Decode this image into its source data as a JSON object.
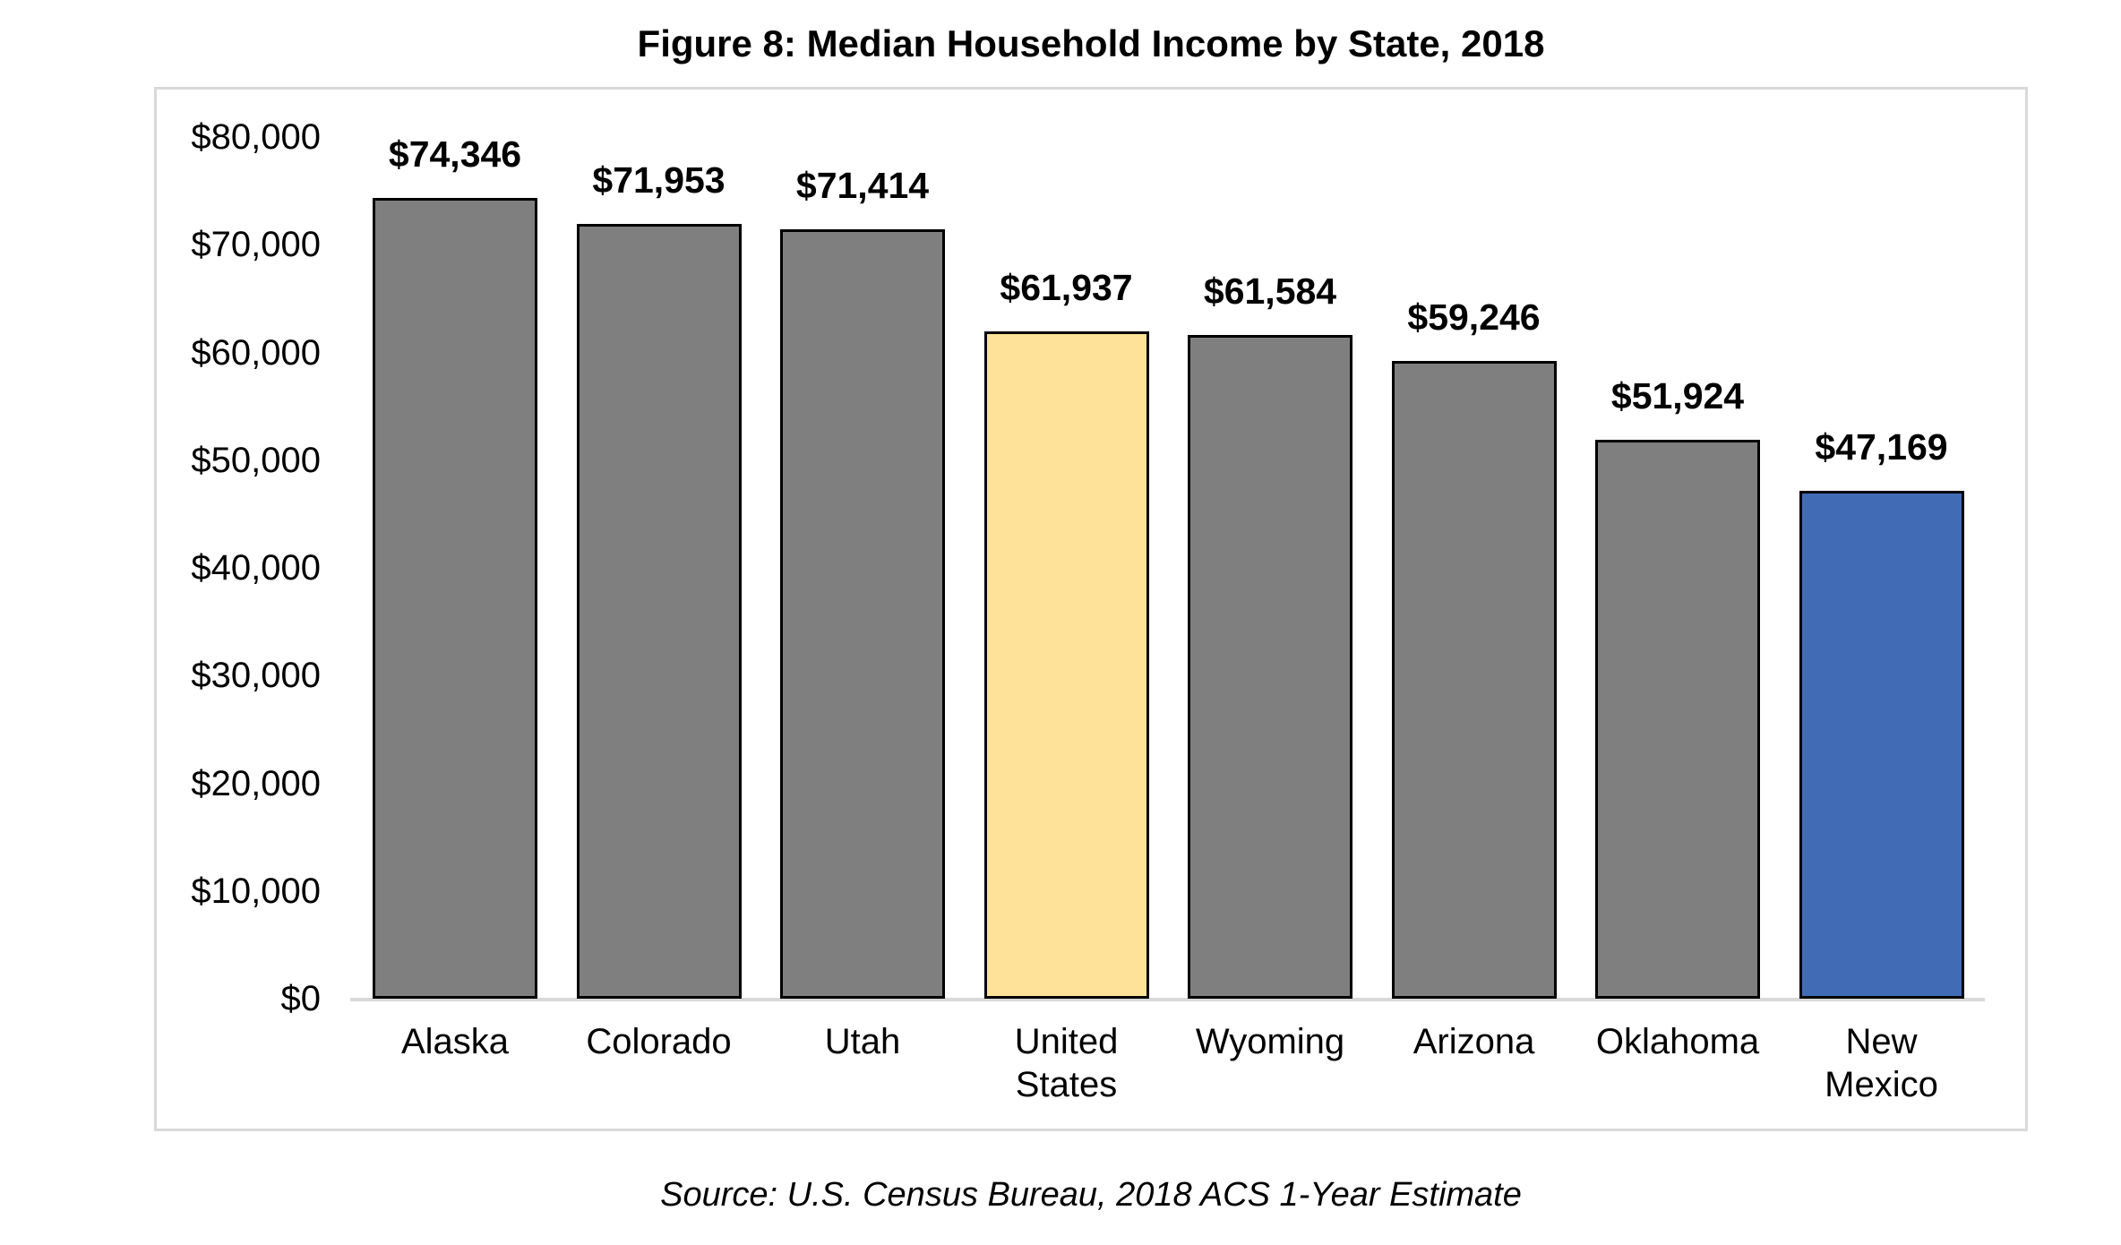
{
  "figure": {
    "title": "Figure 8: Median Household Income by State, 2018",
    "source": "Source: U.S. Census Bureau, 2018 ACS 1-Year Estimate"
  },
  "chart_data": {
    "type": "bar",
    "title": "Figure 8: Median Household Income by State, 2018",
    "categories": [
      "Alaska",
      "Colorado",
      "Utah",
      "United States",
      "Wyoming",
      "Arizona",
      "Oklahoma",
      "New Mexico"
    ],
    "values": [
      74346,
      71953,
      71414,
      61937,
      61584,
      59246,
      51924,
      47169
    ],
    "data_labels": [
      "$74,346",
      "$71,953",
      "$71,414",
      "$61,937",
      "$61,584",
      "$59,246",
      "$51,924",
      "$47,169"
    ],
    "bar_colors": [
      "#7F7F7F",
      "#7F7F7F",
      "#7F7F7F",
      "#FFE299",
      "#7F7F7F",
      "#7F7F7F",
      "#7F7F7F",
      "#416CB5"
    ],
    "bar_border_color": "#000000",
    "highlight_notes": {
      "default_color": "#7F7F7F",
      "united_states_color": "#FFE299",
      "new_mexico_color": "#416CB5"
    },
    "xlabel": "",
    "ylabel": "",
    "ylim": [
      0,
      80000
    ],
    "y_ticks": [
      "$80,000",
      "$70,000",
      "$60,000",
      "$50,000",
      "$40,000",
      "$30,000",
      "$20,000",
      "$10,000",
      "$0"
    ],
    "y_tick_values": [
      80000,
      70000,
      60000,
      50000,
      40000,
      30000,
      20000,
      10000,
      0
    ],
    "grid": "off",
    "legend": "none",
    "axis_color": "#D9D9D9",
    "frame_color": "#D9D9D9",
    "source": "Source: U.S. Census Bureau, 2018 ACS 1-Year Estimate"
  }
}
